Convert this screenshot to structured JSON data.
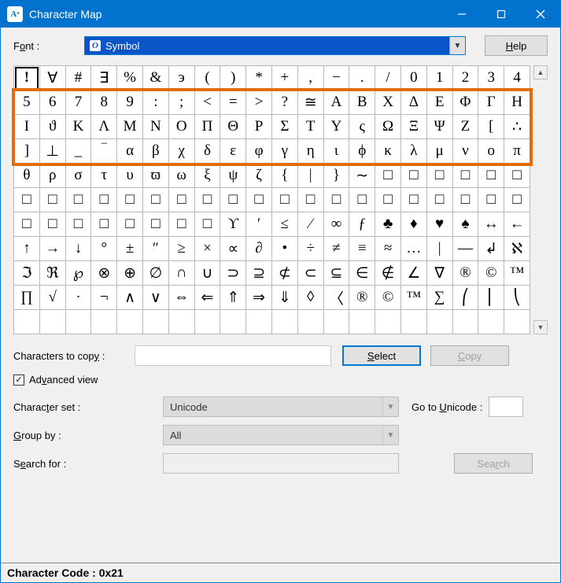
{
  "window": {
    "title": "Character Map",
    "icon_text": "Aᵃ",
    "titlebar_bg": "#0173cf",
    "titlebar_fg": "#ffffff"
  },
  "font_row": {
    "label_pre": "F",
    "label_und": "o",
    "label_post": "nt :",
    "selected_font": "Symbol"
  },
  "help_btn": {
    "und": "H",
    "rest": "elp"
  },
  "grid": {
    "cols": 20,
    "rows": 11,
    "selected_index": 0,
    "highlight": {
      "row_start": 1,
      "row_end": 3,
      "color": "#e46c0a"
    },
    "cells": [
      "!",
      "∀",
      "#",
      "∃",
      "%",
      "&",
      "э",
      "(",
      ")",
      "*",
      "+",
      ",",
      "−",
      ".",
      "/",
      "0",
      "1",
      "2",
      "3",
      "4",
      "5",
      "6",
      "7",
      "8",
      "9",
      ":",
      ";",
      "<",
      "=",
      ">",
      "?",
      "≅",
      "Α",
      "Β",
      "Χ",
      "Δ",
      "Ε",
      "Φ",
      "Γ",
      "Η",
      "Ι",
      "ϑ",
      "Κ",
      "Λ",
      "Μ",
      "Ν",
      "Ο",
      "Π",
      "Θ",
      "Ρ",
      "Σ",
      "Τ",
      "Υ",
      "ς",
      "Ω",
      "Ξ",
      "Ψ",
      "Ζ",
      "[",
      "∴",
      "]",
      "⊥",
      "_",
      "‾",
      "α",
      "β",
      "χ",
      "δ",
      "ε",
      "φ",
      "γ",
      "η",
      "ι",
      "ϕ",
      "κ",
      "λ",
      "μ",
      "ν",
      "ο",
      "π",
      "θ",
      "ρ",
      "σ",
      "τ",
      "υ",
      "ϖ",
      "ω",
      "ξ",
      "ψ",
      "ζ",
      "{",
      "|",
      "}",
      "∼",
      "□",
      "□",
      "□",
      "□",
      "□",
      "□",
      "□",
      "□",
      "□",
      "□",
      "□",
      "□",
      "□",
      "□",
      "□",
      "□",
      "□",
      "□",
      "□",
      "□",
      "□",
      "□",
      "□",
      "□",
      "□",
      "□",
      "□",
      "□",
      "□",
      "□",
      "□",
      "□",
      "□",
      "□",
      "ϒ",
      "′",
      "≤",
      "⁄",
      "∞",
      "ƒ",
      "♣",
      "♦",
      "♥",
      "♠",
      "↔",
      "←",
      "↑",
      "→",
      "↓",
      "°",
      "±",
      "″",
      "≥",
      "×",
      "∝",
      "∂",
      "•",
      "÷",
      "≠",
      "≡",
      "≈",
      "…",
      "|",
      "—",
      "↲",
      "ℵ",
      "ℑ",
      "ℜ",
      "℘",
      "⊗",
      "⊕",
      "∅",
      "∩",
      "∪",
      "⊃",
      "⊇",
      "⊄",
      "⊂",
      "⊆",
      "∈",
      "∉",
      "∠",
      "∇",
      "®",
      "©",
      "™",
      "∏",
      "√",
      "·",
      "¬",
      "∧",
      "∨",
      "⇔",
      "⇐",
      "⇑",
      "⇒",
      "⇓",
      "◊",
      "〈",
      "®",
      "©",
      "™",
      "∑",
      "⎛",
      "⎜",
      "⎝"
    ]
  },
  "copy_row": {
    "label_pre": "Characters to cop",
    "label_und": "y",
    "label_post": " :",
    "value": "",
    "select_btn": {
      "und": "S",
      "rest": "elect"
    },
    "copy_btn": {
      "und": "C",
      "rest": "opy"
    }
  },
  "adv": {
    "checked": true,
    "pre": "Ad",
    "und": "v",
    "post": "anced view"
  },
  "charset": {
    "label_pre": "Charac",
    "label_und": "t",
    "label_post": "er set :",
    "value": "Unicode",
    "goto_pre": "Go to ",
    "goto_und": "U",
    "goto_post": "nicode :",
    "goto_value": ""
  },
  "groupby": {
    "label_und": "G",
    "label_post": "roup by :",
    "value": "All"
  },
  "search": {
    "label_pre": "S",
    "label_und": "e",
    "label_post": "arch for :",
    "value": "",
    "btn_pre": "Sea",
    "btn_und": "r",
    "btn_post": "ch"
  },
  "status": "Character Code : 0x21"
}
